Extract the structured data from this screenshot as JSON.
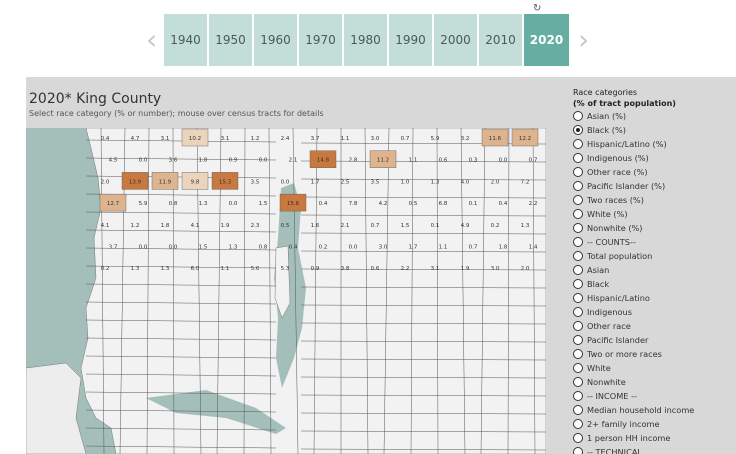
{
  "years": [
    "1940",
    "1950",
    "1960",
    "1970",
    "1980",
    "1990",
    "2000",
    "2010",
    "2020"
  ],
  "selected_year": "2020",
  "nav": {
    "prev": "‹",
    "next": "›",
    "reset": "↻"
  },
  "title": "2020* King County",
  "subtitle": "Select race category (% or number); mouse over census tracts for details",
  "legend": {
    "title": "Race categories",
    "subtitle": "(% of tract population)",
    "selected": "Black (%)",
    "options": [
      "Asian (%)",
      "Black (%)",
      "Hispanic/Latino (%)",
      "Indigenous (%)",
      "Other race (%)",
      "Pacific Islander (%)",
      "Two races (%)",
      "White (%)",
      "Nonwhite (%)",
      "-- COUNTS--",
      "Total population",
      "Asian",
      "Black",
      "Hispanic/Latino",
      "Indigenous",
      "Other race",
      "Pacific Islander",
      "Two or more races",
      "White",
      "Nonwhite",
      "-- INCOME --",
      "Median household income",
      "2+ family income",
      "1 person HH income",
      "-- TECHNICAL"
    ]
  },
  "map_labels": [
    "0.4",
    "4.7",
    "3.1",
    "10.2",
    "3.1",
    "1.2",
    "2.4",
    "3.7",
    "1.1",
    "3.0",
    "0.7",
    "5.9",
    "3.2",
    "11.6",
    "12.2",
    "4.5",
    "0.0",
    "3.6",
    "1.8",
    "0.9",
    "0.0",
    "2.1",
    "14.8",
    "2.8",
    "11.2",
    "1.1",
    "0.6",
    "0.3",
    "0.0",
    "0.7",
    "2.0",
    "13.9",
    "11.9",
    "9.8",
    "15.3",
    "3.5",
    "0.0",
    "1.7",
    "2.5",
    "3.5",
    "1.0",
    "1.3",
    "4.0",
    "2.0",
    "7.2",
    "12.7",
    "5.9",
    "0.8",
    "1.3",
    "0.0",
    "1.5",
    "15.6",
    "0.4",
    "7.8",
    "4.2",
    "0.5",
    "6.8",
    "0.1",
    "0.4",
    "2.2",
    "4.1",
    "1.2",
    "1.8",
    "4.1",
    "1.9",
    "2.3",
    "0.5",
    "1.6",
    "2.1",
    "0.7",
    "1.5",
    "0.1",
    "4.9",
    "0.2",
    "1.3",
    "3.7",
    "0.0",
    "0.0",
    "1.5",
    "1.3",
    "0.8",
    "0.4",
    "0.2",
    "0.0",
    "3.0",
    "1.7",
    "1.1",
    "0.7",
    "1.8",
    "1.4",
    "0.2",
    "1.3",
    "1.3",
    "6.0",
    "1.1",
    "5.6",
    "5.3",
    "0.9",
    "3.8",
    "0.6",
    "2.2",
    "3.1",
    "1.9",
    "3.0",
    "2.0"
  ],
  "colors": {
    "water": "#a4bfba",
    "land": "#f2f2f2",
    "tract_line": "#555555",
    "high": "#c9793f",
    "mid": "#ddb48e",
    "low": "#ebd4bc",
    "accent": "#66ada2"
  }
}
